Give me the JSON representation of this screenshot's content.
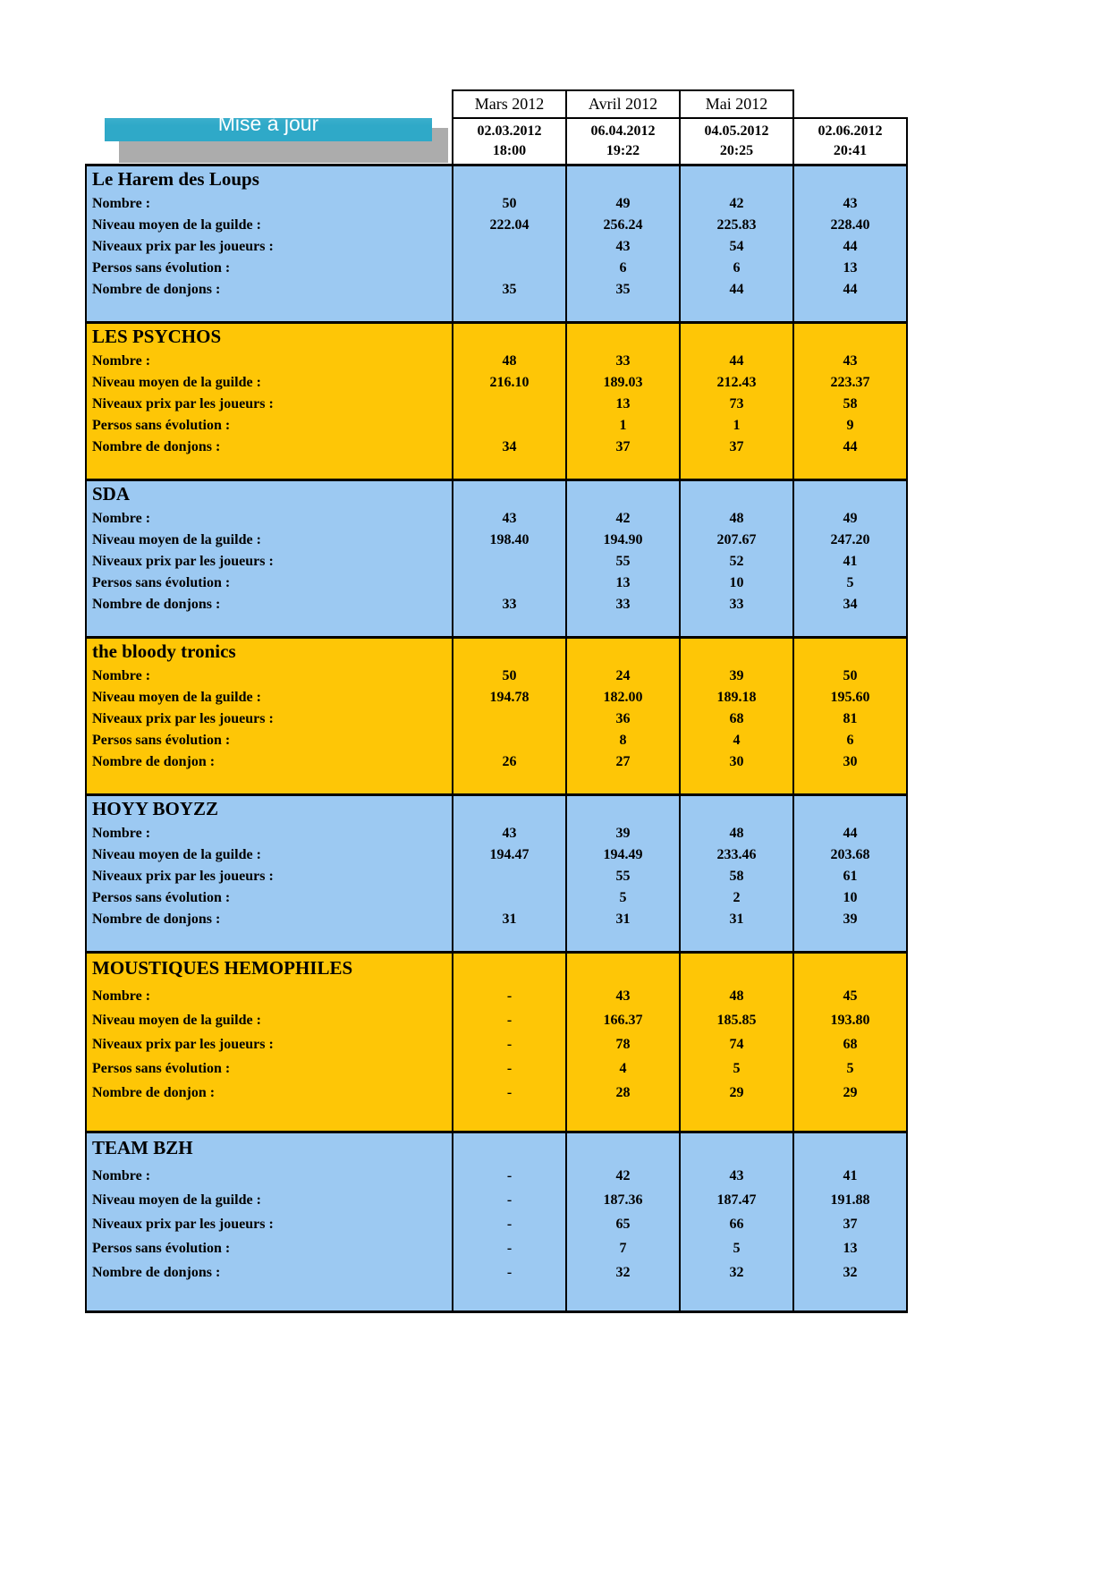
{
  "banner": {
    "label": "Mise à jour"
  },
  "header": {
    "columns": [
      {
        "month": "Mars 2012",
        "date": "02.03.2012",
        "time": "18:00"
      },
      {
        "month": "Avril 2012",
        "date": "06.04.2012",
        "time": "19:22"
      },
      {
        "month": "Mai 2012",
        "date": "04.05.2012",
        "time": "20:25"
      },
      {
        "month": "",
        "date": "02.06.2012",
        "time": "20:41"
      }
    ]
  },
  "guilds": [
    {
      "name": "Le Harem des Loups",
      "style": "blue",
      "tall": false,
      "rows": [
        {
          "label": "Nombre :",
          "values": [
            "50",
            "49",
            "42",
            "43"
          ]
        },
        {
          "label": "Niveau moyen de la guilde :",
          "values": [
            "222.04",
            "256.24",
            "225.83",
            "228.40"
          ]
        },
        {
          "label": "Niveaux prix par les joueurs :",
          "values": [
            "",
            "43",
            "54",
            "44"
          ]
        },
        {
          "label": "Persos sans évolution :",
          "values": [
            "",
            "6",
            "6",
            "13"
          ]
        },
        {
          "label": "Nombre de donjons :",
          "values": [
            "35",
            "35",
            "44",
            "44"
          ]
        }
      ]
    },
    {
      "name": "LES PSYCHOS",
      "style": "gold",
      "tall": false,
      "rows": [
        {
          "label": "Nombre :",
          "values": [
            "48",
            "33",
            "44",
            "43"
          ]
        },
        {
          "label": "Niveau moyen de la guilde :",
          "values": [
            "216.10",
            "189.03",
            "212.43",
            "223.37"
          ]
        },
        {
          "label": "Niveaux prix par les joueurs :",
          "values": [
            "",
            "13",
            "73",
            "58"
          ]
        },
        {
          "label": "Persos sans évolution :",
          "values": [
            "",
            "1",
            "1",
            "9"
          ]
        },
        {
          "label": "Nombre de donjons :",
          "values": [
            "34",
            "37",
            "37",
            "44"
          ]
        }
      ]
    },
    {
      "name": "SDA",
      "style": "blue",
      "tall": false,
      "rows": [
        {
          "label": "Nombre :",
          "values": [
            "43",
            "42",
            "48",
            "49"
          ]
        },
        {
          "label": "Niveau moyen de la guilde :",
          "values": [
            "198.40",
            "194.90",
            "207.67",
            "247.20"
          ]
        },
        {
          "label": "Niveaux prix par les joueurs :",
          "values": [
            "",
            "55",
            "52",
            "41"
          ]
        },
        {
          "label": "Persos sans évolution :",
          "values": [
            "",
            "13",
            "10",
            "5"
          ]
        },
        {
          "label": "Nombre de donjons :",
          "values": [
            "33",
            "33",
            "33",
            "34"
          ]
        }
      ]
    },
    {
      "name": "the bloody tronics",
      "style": "gold",
      "tall": false,
      "rows": [
        {
          "label": "Nombre :",
          "values": [
            "50",
            "24",
            "39",
            "50"
          ]
        },
        {
          "label": "Niveau moyen de la guilde :",
          "values": [
            "194.78",
            "182.00",
            "189.18",
            "195.60"
          ]
        },
        {
          "label": "Niveaux prix par les joueurs :",
          "values": [
            "",
            "36",
            "68",
            "81"
          ]
        },
        {
          "label": "Persos sans évolution :",
          "values": [
            "",
            "8",
            "4",
            "6"
          ]
        },
        {
          "label": "Nombre de donjon :",
          "values": [
            "26",
            "27",
            "30",
            "30"
          ]
        }
      ]
    },
    {
      "name": "HOYY BOYZZ",
      "style": "blue",
      "tall": false,
      "rows": [
        {
          "label": "Nombre :",
          "values": [
            "43",
            "39",
            "48",
            "44"
          ]
        },
        {
          "label": "Niveau moyen de la guilde :",
          "values": [
            "194.47",
            "194.49",
            "233.46",
            "203.68"
          ]
        },
        {
          "label": "Niveaux prix par les joueurs :",
          "values": [
            "",
            "55",
            "58",
            "61"
          ]
        },
        {
          "label": "Persos sans évolution :",
          "values": [
            "",
            "5",
            "2",
            "10"
          ]
        },
        {
          "label": "Nombre de donjons :",
          "values": [
            "31",
            "31",
            "31",
            "39"
          ]
        }
      ]
    },
    {
      "name": "MOUSTIQUES HEMOPHILES",
      "style": "gold",
      "tall": true,
      "rows": [
        {
          "label": "Nombre :",
          "values": [
            "-",
            "43",
            "48",
            "45"
          ]
        },
        {
          "label": "Niveau moyen de la guilde :",
          "values": [
            "-",
            "166.37",
            "185.85",
            "193.80"
          ]
        },
        {
          "label": "Niveaux prix par les joueurs :",
          "values": [
            "-",
            "78",
            "74",
            "68"
          ]
        },
        {
          "label": "Persos sans évolution :",
          "values": [
            "-",
            "4",
            "5",
            "5"
          ]
        },
        {
          "label": "Nombre de donjon :",
          "values": [
            "-",
            "28",
            "29",
            "29"
          ]
        }
      ]
    },
    {
      "name": "TEAM BZH",
      "style": "blue",
      "tall": true,
      "rows": [
        {
          "label": "Nombre :",
          "values": [
            "-",
            "42",
            "43",
            "41"
          ]
        },
        {
          "label": "Niveau moyen de la guilde :",
          "values": [
            "-",
            "187.36",
            "187.47",
            "191.88"
          ]
        },
        {
          "label": "Niveaux prix par les joueurs :",
          "values": [
            "-",
            "65",
            "66",
            "37"
          ]
        },
        {
          "label": "Persos sans évolution :",
          "values": [
            "-",
            "7",
            "5",
            "13"
          ]
        },
        {
          "label": "Nombre de donjons :",
          "values": [
            "-",
            "32",
            "32",
            "32"
          ]
        }
      ]
    }
  ],
  "colors": {
    "blue_block": "#9cc9f2",
    "gold_block": "#fec606",
    "banner_teal": "#2fa9c8",
    "shadow_gray": "#acacac",
    "border": "#000000"
  }
}
